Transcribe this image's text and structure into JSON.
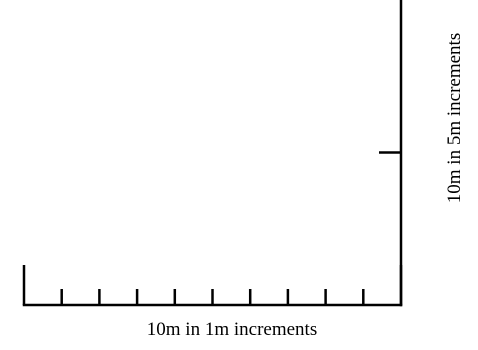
{
  "diagram": {
    "horizontal_scale": {
      "label": "10m in 1m increments",
      "total_m": 10,
      "increment_m": 1
    },
    "vertical_scale": {
      "label": "10m in 5m increments",
      "total_m": 10,
      "increment_m": 5
    },
    "line_color": "#000000"
  }
}
